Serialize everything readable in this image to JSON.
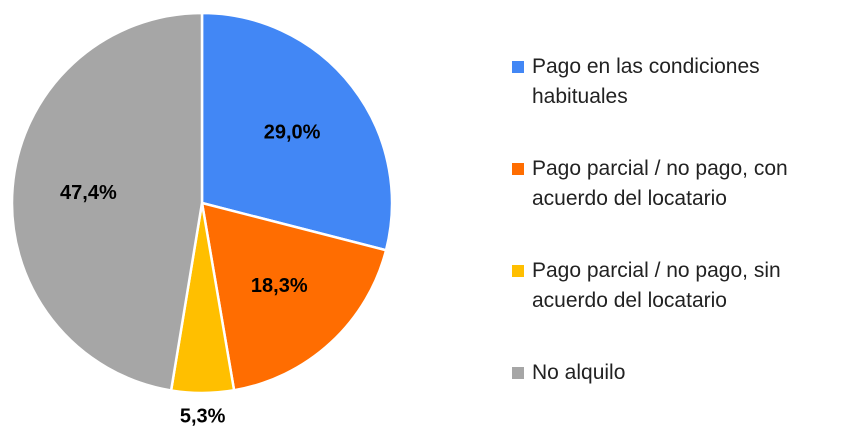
{
  "chart_data": {
    "type": "pie",
    "categories": [
      "Pago en las condiciones habituales",
      "Pago parcial / no pago, con acuerdo del locatario",
      "Pago parcial / no pago, sin acuerdo del locatario",
      "No alquilo"
    ],
    "values": [
      29.0,
      18.3,
      5.3,
      47.4
    ],
    "value_labels": [
      "29,0%",
      "18,3%",
      "5,3%",
      "47,4%"
    ],
    "colors": [
      "#4287f5",
      "#ff6d01",
      "#ffbf00",
      "#a6a6a6"
    ]
  }
}
